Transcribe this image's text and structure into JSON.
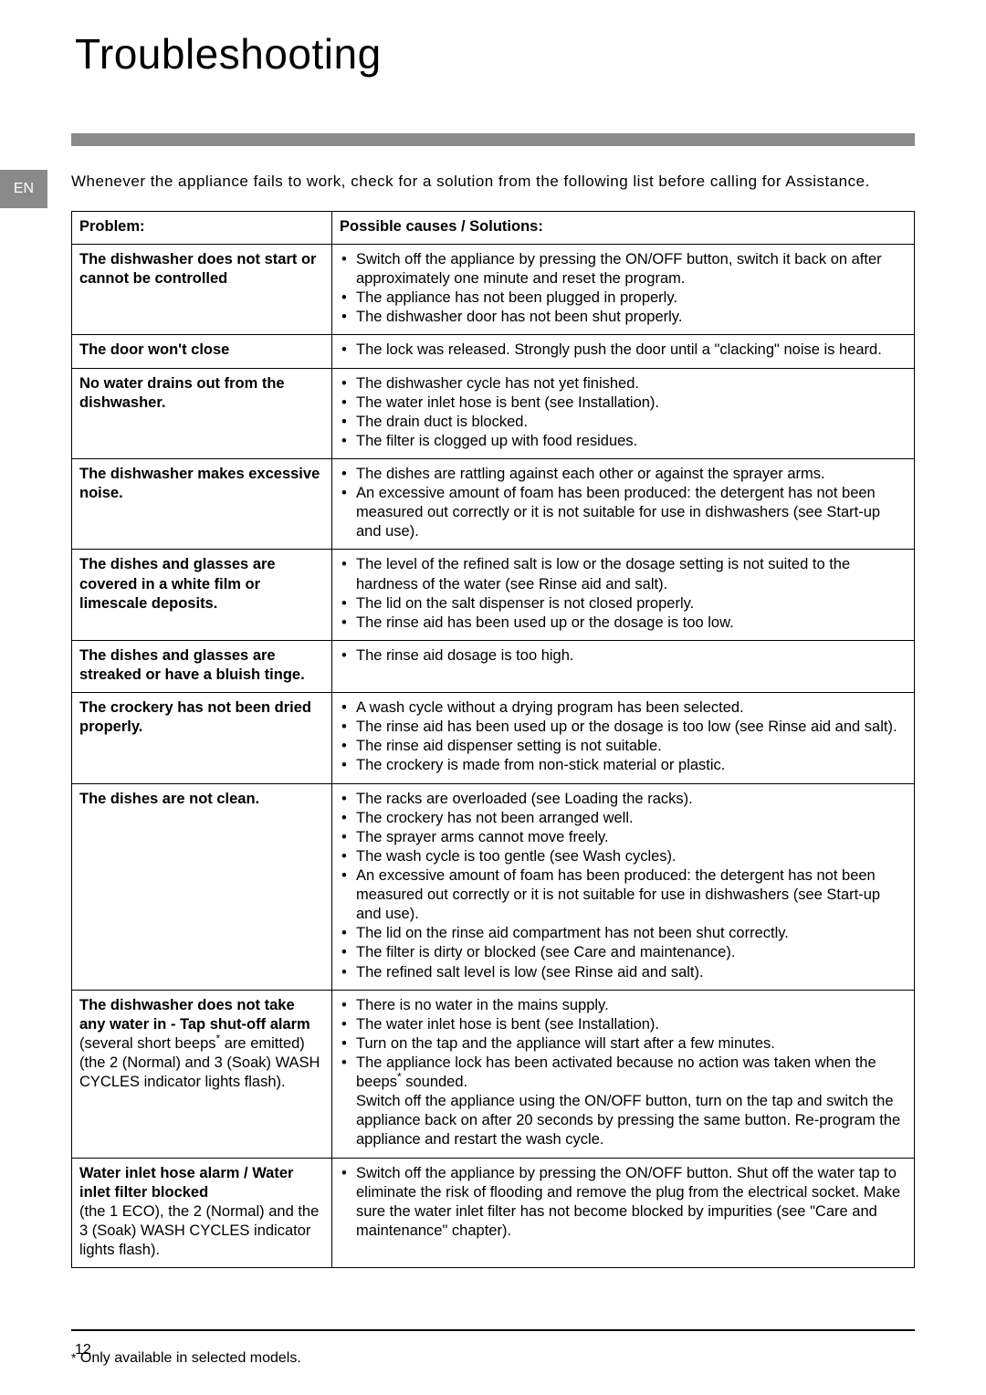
{
  "title": "Troubleshooting",
  "lang_tab": "EN",
  "intro": "Whenever the appliance fails to work, check for a solution from the following list before calling for Assistance.",
  "headers": {
    "problem": "Problem:",
    "solutions": "Possible causes / Solutions:"
  },
  "rows": [
    {
      "problem_bold": "The dishwasher does not start or cannot be controlled",
      "problem_extra": "",
      "solutions": [
        "Switch off the appliance by pressing the ON/OFF button, switch it back on after approximately one minute and reset the program.",
        "The appliance has not been plugged in properly.",
        "The dishwasher door has not been shut properly."
      ]
    },
    {
      "problem_bold": "The door won't close",
      "problem_extra": "",
      "solutions": [
        "The lock was released. Strongly push the door until a \"clacking\" noise is heard."
      ]
    },
    {
      "problem_bold": "No water drains out from the dishwasher.",
      "problem_extra": "",
      "solutions": [
        "The dishwasher cycle has not yet finished.",
        "The water inlet hose is bent (see Installation).",
        "The drain duct is blocked.",
        "The filter is clogged up with food residues."
      ]
    },
    {
      "problem_bold": "The dishwasher makes excessive noise.",
      "problem_extra": "",
      "solutions": [
        "The dishes are rattling against each other or against the sprayer arms.",
        "An excessive amount of foam has been produced: the detergent has not been measured out correctly or it is not suitable for use in dishwashers (see Start-up and use)."
      ]
    },
    {
      "problem_bold": "The dishes and glasses are covered in a white film or limescale deposits.",
      "problem_extra": "",
      "solutions": [
        "The level of the refined salt is low or the dosage setting is not suited to the hardness of the water (see Rinse aid and salt).",
        "The lid on the salt dispenser is not closed properly.",
        "The rinse aid has been used up or the dosage is too low."
      ]
    },
    {
      "problem_bold": "The dishes and glasses are streaked or have a bluish tinge.",
      "problem_extra": "",
      "solutions": [
        "The rinse aid dosage is too high."
      ]
    },
    {
      "problem_bold": "The crockery has not been dried properly.",
      "problem_extra": "",
      "solutions": [
        "A wash cycle without a drying program has been selected.",
        "The rinse aid has been used up or the dosage is too low (see Rinse aid and salt).",
        "The rinse aid dispenser setting is not suitable.",
        "The crockery is made from non-stick material or plastic."
      ]
    },
    {
      "problem_bold": "The dishes are not clean.",
      "problem_extra": "",
      "solutions": [
        "The racks are overloaded (see Loading the racks).",
        "The crockery has not been arranged well.",
        "The sprayer arms cannot move freely.",
        "The wash cycle is too gentle (see Wash cycles).",
        "An excessive amount of foam has been produced: the detergent has not been measured out correctly or it is not suitable for use in dishwashers (see Start-up and use).",
        "The lid on the rinse aid compartment has not been shut correctly.",
        "The filter is dirty or blocked (see Care and maintenance).",
        "The refined salt level is low (see Rinse aid and salt)."
      ]
    },
    {
      "problem_bold": "The dishwasher does not take any water in - Tap shut-off alarm",
      "problem_extra_html": "(several short beeps<span class=\"star\">*</span> are emitted)<br>(the  2 (Normal) and 3 (Soak)  WASH CYCLES indicator lights flash).",
      "solutions_html": [
        "There is no water in the mains supply.",
        "The water inlet hose is bent (see Installation).",
        "Turn on the tap and the appliance will start after a few minutes.",
        "The appliance lock has been activated because no action was taken when the beeps<span class=\"star\">*</span> sounded.<br><span class=\"cont-block\">Switch off the appliance using the ON/OFF button, turn on the tap and switch the appliance back on after 20 seconds by pressing the same button. Re-program the appliance and restart the wash cycle.</span>"
      ]
    },
    {
      "problem_bold": "Water inlet hose alarm / Water inlet filter blocked",
      "problem_extra": "(the 1 ECO), the 2  (Normal) and the 3 (Soak) WASH CYCLES indicator lights flash).",
      "solutions": [
        "Switch off the appliance by pressing the ON/OFF button. Shut off the water tap to eliminate the risk of flooding and remove the plug from the electrical socket. Make sure the water inlet filter has not become blocked by impurities (see \"Care and maintenance\" chapter)."
      ]
    }
  ],
  "footnote_pre": "*",
  "footnote": " Only available in selected models.",
  "page_number": "12",
  "colors": {
    "bar": "#8a8a8a",
    "text": "#000000",
    "bg": "#ffffff"
  }
}
